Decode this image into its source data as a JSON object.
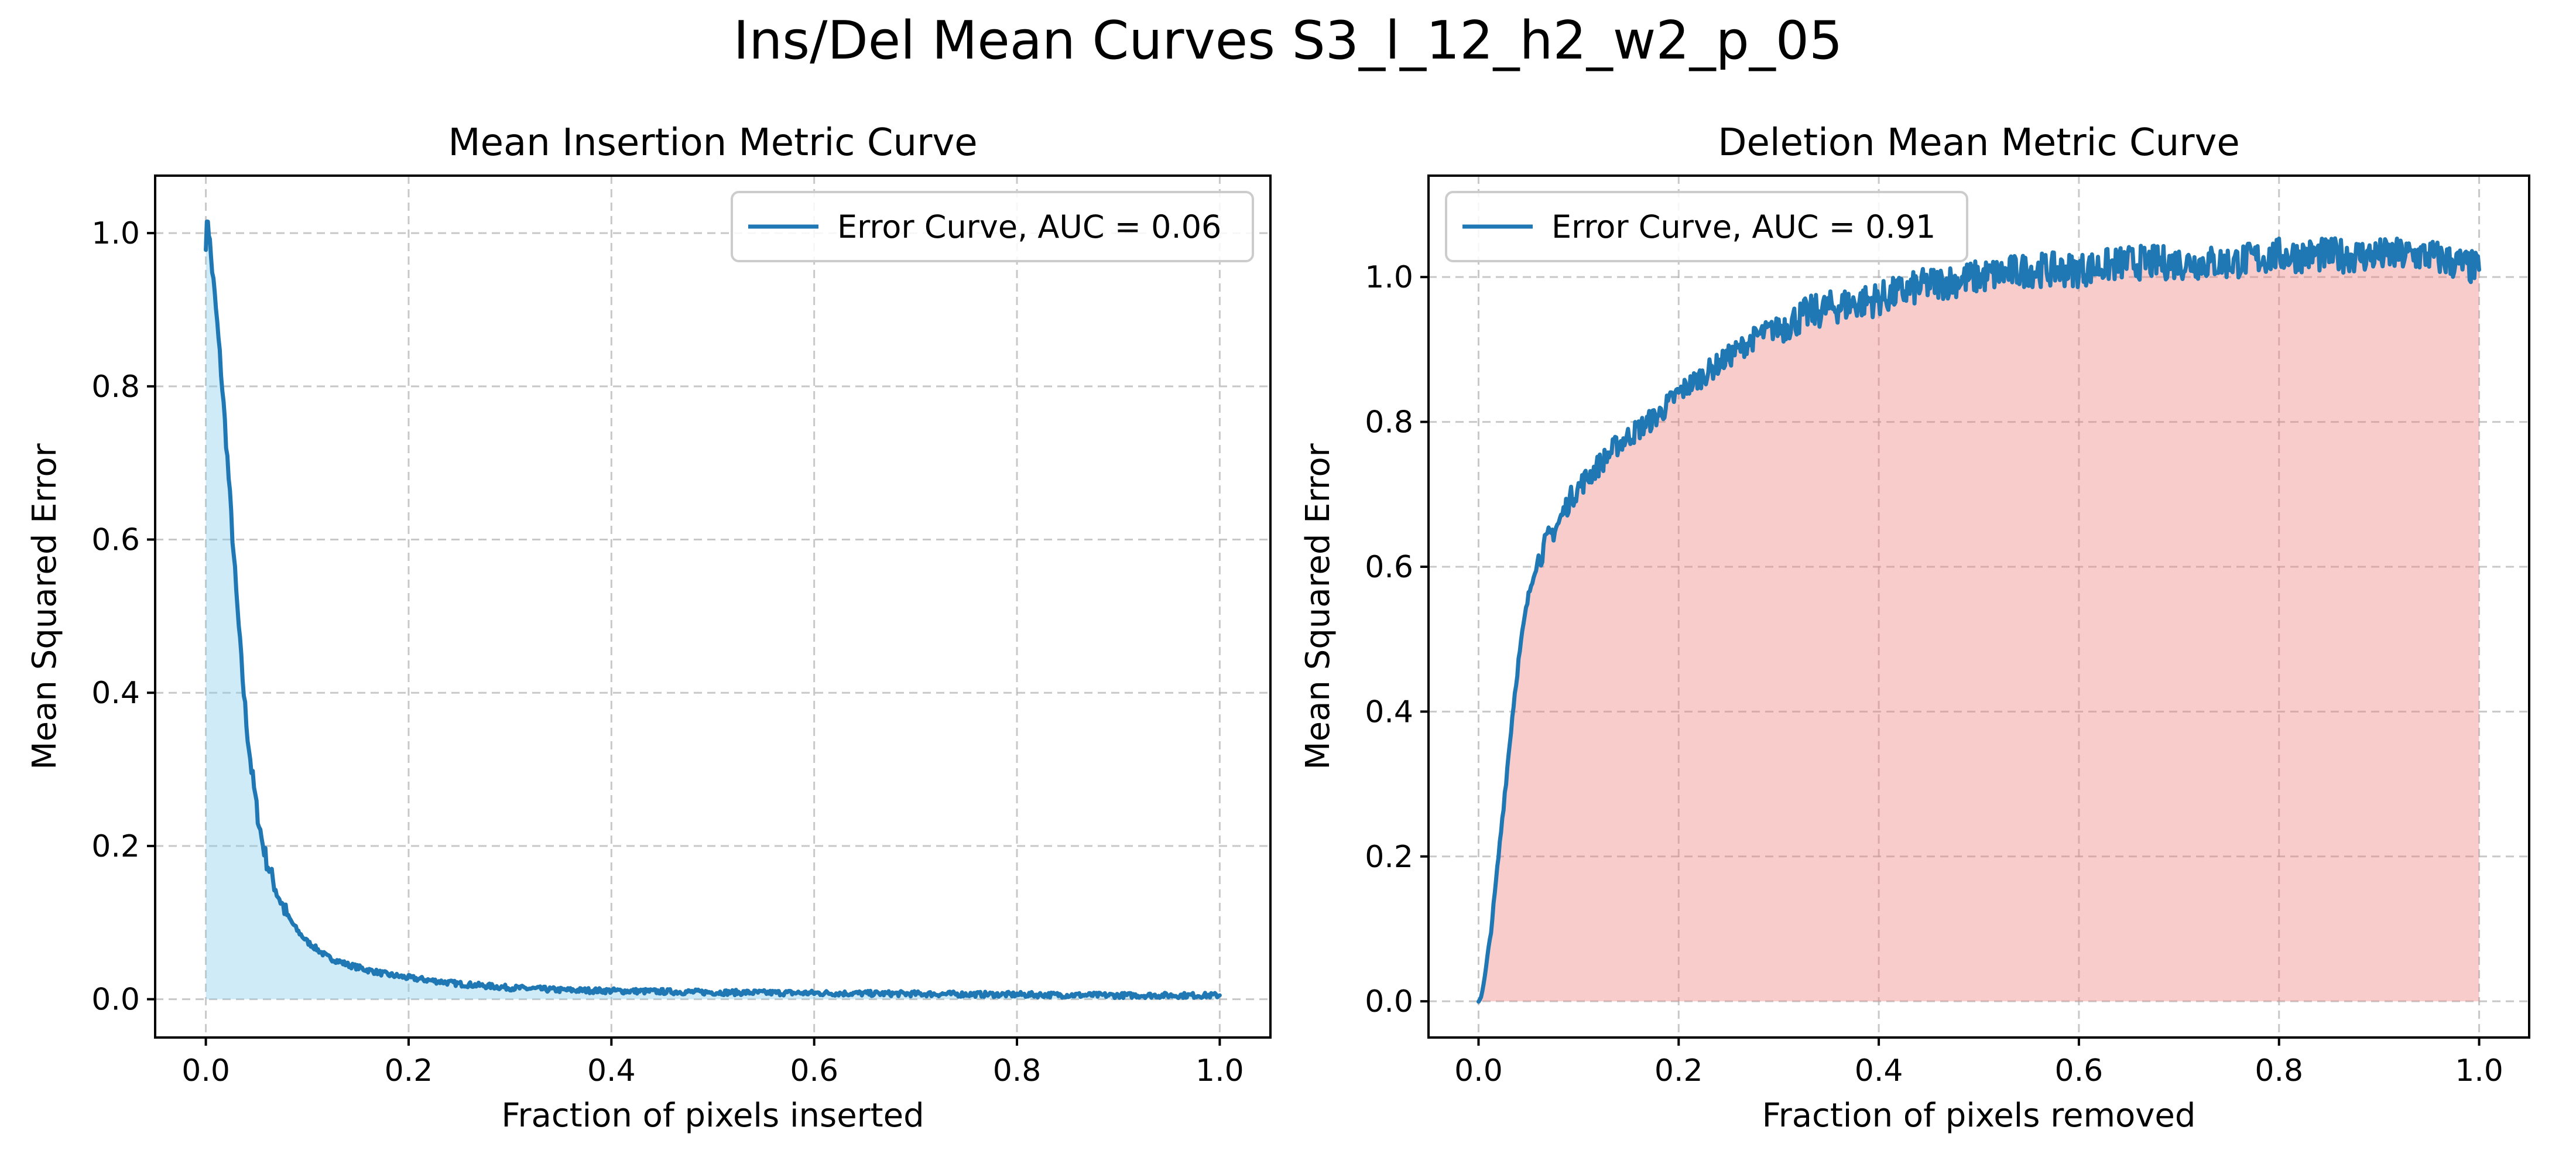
{
  "figure": {
    "suptitle": "Ins/Del Mean Curves S3_l_12_h2_w2_p_05"
  },
  "colors": {
    "line": "#1f77b4",
    "insertion_fill": "#87ceeb",
    "deletion_fill": "#f08080"
  },
  "chart_data": [
    {
      "type": "line",
      "title": "Mean Insertion Metric Curve",
      "xlabel": "Fraction of pixels inserted",
      "ylabel": "Mean Squared Error",
      "xlim": [
        -0.05,
        1.05
      ],
      "ylim": [
        -0.05,
        1.075
      ],
      "xticks": [
        0.0,
        0.2,
        0.4,
        0.6,
        0.8,
        1.0
      ],
      "xtick_labels": [
        "0.0",
        "0.2",
        "0.4",
        "0.6",
        "0.8",
        "1.0"
      ],
      "yticks": [
        0.0,
        0.2,
        0.4,
        0.6,
        0.8,
        1.0
      ],
      "ytick_labels": [
        "0.0",
        "0.2",
        "0.4",
        "0.6",
        "0.8",
        "1.0"
      ],
      "grid": true,
      "legend": "upper right",
      "fill_under": true,
      "series": [
        {
          "name": "Error Curve, AUC = 0.06",
          "x": [
            0.0,
            0.002,
            0.005,
            0.01,
            0.015,
            0.02,
            0.025,
            0.03,
            0.035,
            0.04,
            0.045,
            0.05,
            0.055,
            0.06,
            0.07,
            0.08,
            0.09,
            0.1,
            0.12,
            0.14,
            0.16,
            0.18,
            0.2,
            0.25,
            0.3,
            0.35,
            0.4,
            0.5,
            0.6,
            0.7,
            0.8,
            0.9,
            1.0
          ],
          "y": [
            0.99,
            1.02,
            0.97,
            0.9,
            0.82,
            0.73,
            0.63,
            0.53,
            0.44,
            0.36,
            0.3,
            0.25,
            0.21,
            0.18,
            0.14,
            0.11,
            0.09,
            0.075,
            0.055,
            0.045,
            0.038,
            0.032,
            0.028,
            0.02,
            0.015,
            0.012,
            0.011,
            0.009,
            0.008,
            0.007,
            0.006,
            0.005,
            0.005
          ]
        }
      ]
    },
    {
      "type": "line",
      "title": "Deletion Mean Metric Curve",
      "xlabel": "Fraction of pixels removed",
      "ylabel": "Mean Squared Error",
      "xlim": [
        -0.05,
        1.05
      ],
      "ylim": [
        -0.05,
        1.14
      ],
      "xticks": [
        0.0,
        0.2,
        0.4,
        0.6,
        0.8,
        1.0
      ],
      "xtick_labels": [
        "0.0",
        "0.2",
        "0.4",
        "0.6",
        "0.8",
        "1.0"
      ],
      "yticks": [
        0.0,
        0.2,
        0.4,
        0.6,
        0.8,
        1.0
      ],
      "ytick_labels": [
        "0.0",
        "0.2",
        "0.4",
        "0.6",
        "0.8",
        "1.0"
      ],
      "grid": true,
      "legend": "upper left",
      "fill_under": true,
      "series": [
        {
          "name": "Error Curve, AUC = 0.91",
          "x": [
            0.0,
            0.005,
            0.01,
            0.015,
            0.02,
            0.025,
            0.03,
            0.035,
            0.04,
            0.045,
            0.05,
            0.055,
            0.06,
            0.07,
            0.08,
            0.09,
            0.1,
            0.12,
            0.14,
            0.16,
            0.18,
            0.2,
            0.22,
            0.25,
            0.28,
            0.3,
            0.33,
            0.36,
            0.4,
            0.45,
            0.5,
            0.55,
            0.6,
            0.65,
            0.7,
            0.75,
            0.8,
            0.85,
            0.9,
            0.95,
            1.0
          ],
          "y": [
            0.0,
            0.02,
            0.07,
            0.13,
            0.2,
            0.27,
            0.34,
            0.41,
            0.47,
            0.52,
            0.56,
            0.59,
            0.61,
            0.64,
            0.66,
            0.69,
            0.71,
            0.74,
            0.77,
            0.79,
            0.81,
            0.84,
            0.86,
            0.89,
            0.92,
            0.93,
            0.95,
            0.96,
            0.97,
            0.99,
            1.0,
            1.01,
            1.01,
            1.02,
            1.02,
            1.02,
            1.03,
            1.03,
            1.03,
            1.03,
            1.01
          ]
        }
      ]
    }
  ]
}
